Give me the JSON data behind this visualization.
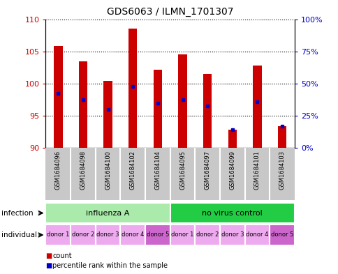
{
  "title": "GDS6063 / ILMN_1701307",
  "samples": [
    "GSM1684096",
    "GSM1684098",
    "GSM1684100",
    "GSM1684102",
    "GSM1684104",
    "GSM1684095",
    "GSM1684097",
    "GSM1684099",
    "GSM1684101",
    "GSM1684103"
  ],
  "count_values": [
    105.8,
    103.5,
    100.4,
    108.5,
    102.2,
    104.5,
    101.5,
    92.8,
    102.8,
    93.4
  ],
  "percentile_values": [
    98.5,
    97.5,
    96.0,
    99.5,
    97.0,
    97.5,
    96.5,
    92.8,
    97.2,
    93.4
  ],
  "y_min": 90,
  "y_max": 110,
  "y_ticks": [
    90,
    95,
    100,
    105,
    110
  ],
  "y2_ticks": [
    0,
    25,
    50,
    75,
    100
  ],
  "infection_groups": [
    {
      "label": "influenza A",
      "start": 0,
      "end": 5,
      "color": "#AAEAAA"
    },
    {
      "label": "no virus control",
      "start": 5,
      "end": 10,
      "color": "#22CC44"
    }
  ],
  "individual_labels": [
    "donor 1",
    "donor 2",
    "donor 3",
    "donor 4",
    "donor 5",
    "donor 1",
    "donor 2",
    "donor 3",
    "donor 4",
    "donor 5"
  ],
  "individual_colors": [
    "#EEAAEE",
    "#EEAAEE",
    "#EEAAEE",
    "#EEAAEE",
    "#CC66CC",
    "#EEAAEE",
    "#EEAAEE",
    "#EEAAEE",
    "#EEAAEE",
    "#CC66CC"
  ],
  "bar_color": "#CC0000",
  "percentile_color": "#0000CC",
  "tick_color_left": "#CC0000",
  "tick_color_right": "#0000CC",
  "sample_bg_color": "#C8C8C8",
  "sample_divider_color": "#FFFFFF",
  "grid_color": "#000000",
  "border_color": "#000000"
}
